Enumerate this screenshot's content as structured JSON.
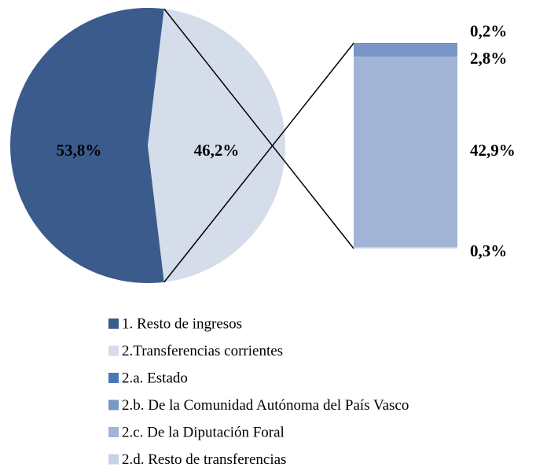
{
  "chart_data": {
    "type": "pie-of-bar",
    "pie": {
      "categories": [
        "1. Resto de ingresos",
        "2.Transferencias corrientes"
      ],
      "values": [
        53.8,
        46.2
      ],
      "value_labels": [
        "53,8%",
        "46,2%"
      ],
      "colors": [
        "#3b5b8c",
        "#d5dcea"
      ]
    },
    "bar": {
      "categories": [
        "2.a. Estado",
        "2.b. De la Comunidad Autónoma del País Vasco",
        "2.c. De la Diputación Foral",
        "2.d. Resto de transferencias"
      ],
      "values": [
        0.2,
        2.8,
        42.9,
        0.3
      ],
      "value_labels": [
        "0,2%",
        "2,8%",
        "42,9%",
        "0,3%"
      ],
      "colors": [
        "#4a78b5",
        "#7896c6",
        "#a2b4d6",
        "#c8d2e6"
      ]
    }
  }
}
